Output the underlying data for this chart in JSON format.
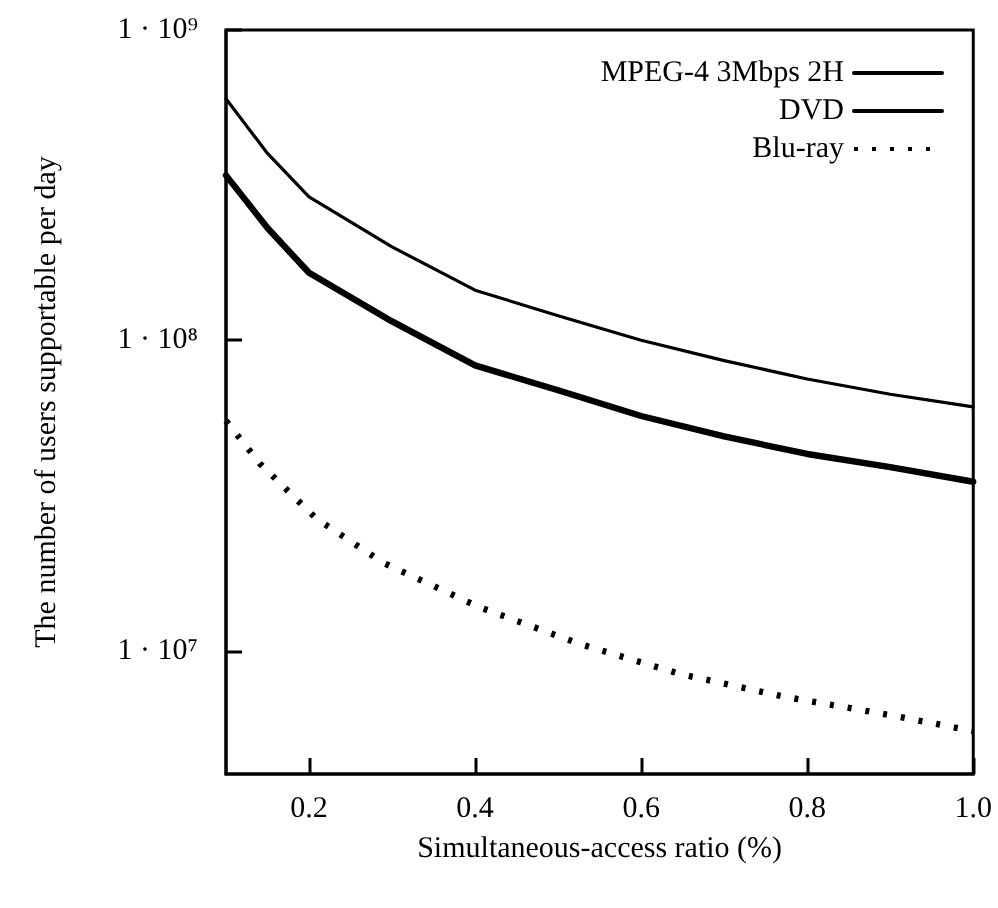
{
  "chart_data": {
    "type": "line",
    "xlabel": "Simultaneous-access ratio (%)",
    "ylabel": "The number of users supportable per day",
    "log": "y",
    "xlim": [
      0.1,
      1.0
    ],
    "xticks": [
      0.2,
      0.4,
      0.6,
      0.8,
      {
        "value": 1.0,
        "label": "1.0"
      }
    ],
    "ylim": [
      4000000,
      1000000000
    ],
    "yticks": [
      {
        "value": 10000000,
        "label": "1 · 10⁷"
      },
      {
        "value": 100000000,
        "label": "1 · 10⁸"
      },
      {
        "value": 1000000000,
        "label": "1 · 10⁹"
      }
    ],
    "grid": false,
    "legend": "top right",
    "marker": "none",
    "series": [
      {
        "name": "MPEG-4 3Mbps 2H",
        "color": "#000000",
        "line_style": "solid",
        "x": [
          0.1,
          0.15,
          0.2,
          0.3,
          0.4,
          0.5,
          0.6,
          0.7,
          0.8,
          0.9,
          1.0
        ],
        "values": [
          600000000,
          400000000,
          290000000,
          200000000,
          145000000,
          120000000,
          100000000,
          86000000,
          75000000,
          67000000,
          61000000
        ]
      },
      {
        "name": "DVD",
        "color": "#000000",
        "line_style": "solid",
        "x": [
          0.1,
          0.15,
          0.2,
          0.3,
          0.4,
          0.5,
          0.6,
          0.7,
          0.8,
          0.9,
          1.0
        ],
        "values": [
          340000000,
          230000000,
          165000000,
          115000000,
          83000000,
          69000000,
          57000000,
          49000000,
          43000000,
          39000000,
          35000000
        ]
      },
      {
        "name": "Blu-ray",
        "color": "#000000",
        "line_style": "dotted",
        "x": [
          0.1,
          0.141,
          0.209,
          0.289,
          0.405,
          0.526,
          0.647,
          0.772,
          0.899,
          1.0
        ],
        "values": [
          55000000,
          40000000,
          26600000,
          19200000,
          13800000,
          10500000,
          8400000,
          7100000,
          6200000,
          5500000
        ]
      }
    ]
  }
}
